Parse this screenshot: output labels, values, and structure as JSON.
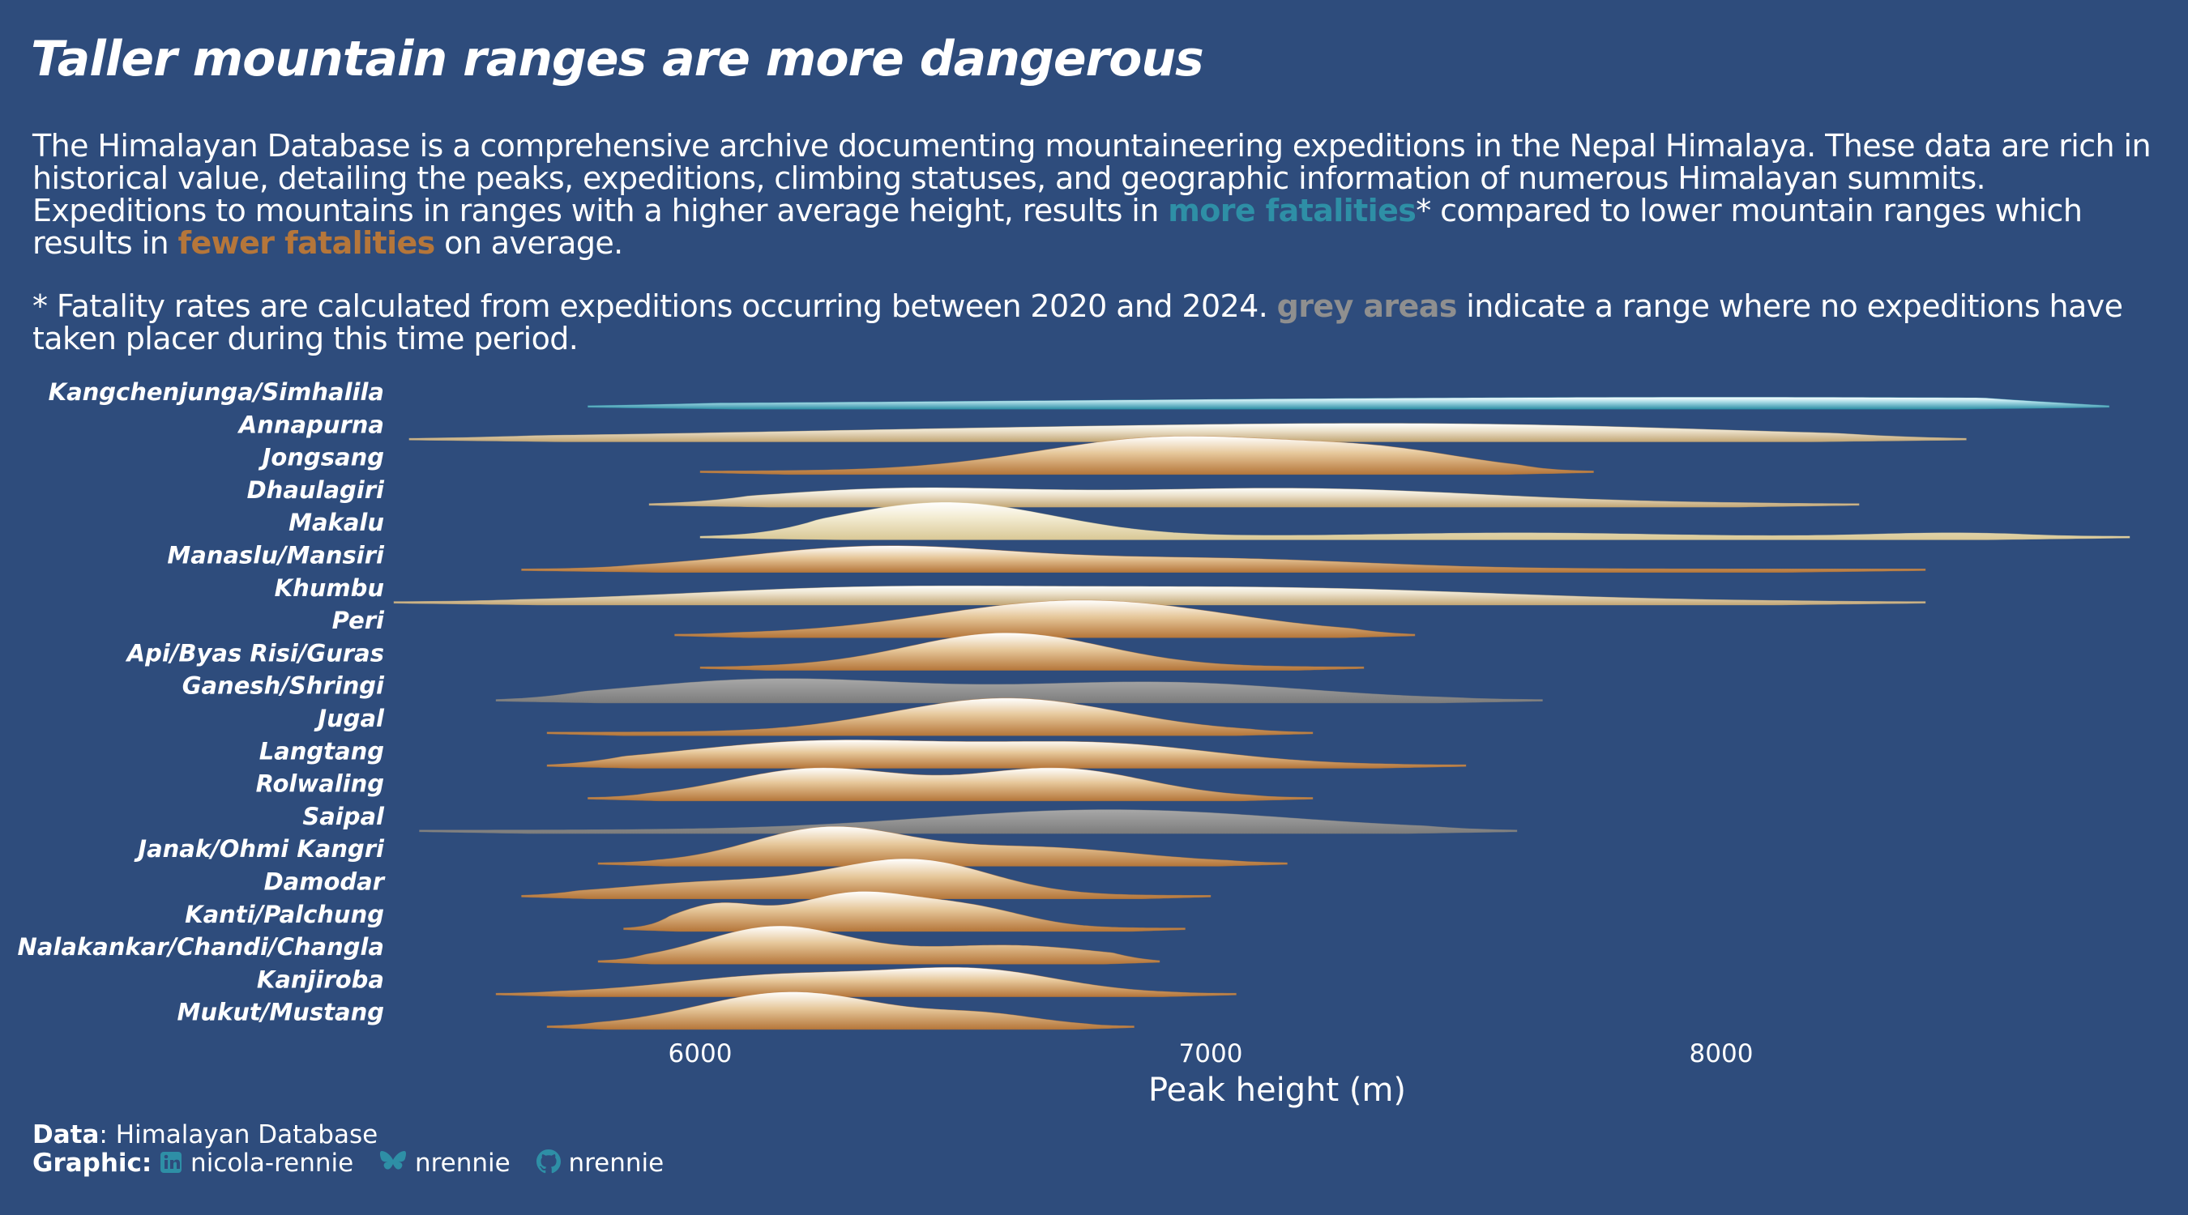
{
  "title": "Taller mountain ranges are more dangerous",
  "subtitle": {
    "p1_a": "The Himalayan Database is a comprehensive archive documenting mountaineering expeditions in the Nepal Himalaya. These data are rich in historical value, detailing the peaks, expeditions, climbing statuses, and geographic information of numerous Himalayan summits. Expeditions to mountains in ranges with a higher average height, results in ",
    "p1_more": "more fatalities",
    "p1_b": "* compared to lower mountain ranges which results in ",
    "p1_fewer": "fewer fatalities",
    "p1_c": " on average.",
    "p2_a": "* Fatality rates are calculated from expeditions occurring between 2020 and 2024. ",
    "p2_grey": "grey areas",
    "p2_b": " indicate a range where no expeditions have taken placer during this time period."
  },
  "caption": {
    "data_label": "Data",
    "data_value": ": Himalayan Database",
    "graphic_label": "Graphic",
    "linkedin": "nicola-rennie",
    "bluesky": "nrennie",
    "github": "nrennie"
  },
  "colors": {
    "background": "#2e4c7c",
    "high_fatality": "#2e8fa6",
    "low_fatality": "#b5763a",
    "no_expeditions": "#8f8f8f",
    "text": "#ffffff"
  },
  "icons": [
    "linkedin-icon",
    "bluesky-icon",
    "github-icon"
  ],
  "chart_data": {
    "type": "ridgeline",
    "xlabel": "Peak height (m)",
    "ylabel": "",
    "xlim": [
      5400,
      8800
    ],
    "xticks": [
      6000,
      7000,
      8000
    ],
    "grid": false,
    "legend": "none",
    "fill": "vertical gradient from range colour (base) to white (peak); colour = fatality rate (teal high, brown low, grey no expeditions)",
    "ridges": [
      {
        "range": "Kangchenjunga/Simhalila",
        "color": "teal",
        "min": 5780,
        "max": 8760,
        "peaks": [
          [
            8000,
            0.25,
            1300
          ]
        ]
      },
      {
        "range": "Annapurna",
        "color": "mixed",
        "min": 5430,
        "max": 8480,
        "peaks": [
          [
            6800,
            0.3,
            700
          ],
          [
            7600,
            0.25,
            500
          ]
        ]
      },
      {
        "range": "Jongsang",
        "color": "brown",
        "min": 6000,
        "max": 7750,
        "peaks": [
          [
            6930,
            1.0,
            260
          ],
          [
            7350,
            0.45,
            170
          ]
        ]
      },
      {
        "range": "Dhaulagiri",
        "color": "mixed",
        "min": 5900,
        "max": 8270,
        "peaks": [
          [
            6380,
            0.4,
            260
          ],
          [
            7150,
            0.45,
            380
          ]
        ]
      },
      {
        "range": "Makalu",
        "color": "cream",
        "min": 6000,
        "max": 8800,
        "peaks": [
          [
            6480,
            1.0,
            210
          ],
          [
            7600,
            0.1,
            250
          ],
          [
            8450,
            0.1,
            150
          ]
        ]
      },
      {
        "range": "Manaslu/Mansiri",
        "color": "brown",
        "min": 5650,
        "max": 8400,
        "peaks": [
          [
            6350,
            0.65,
            260
          ],
          [
            7000,
            0.3,
            300
          ]
        ]
      },
      {
        "range": "Khumbu",
        "color": "mixed",
        "min": 5400,
        "max": 8400,
        "peaks": [
          [
            6300,
            0.35,
            350
          ],
          [
            7100,
            0.4,
            450
          ]
        ]
      },
      {
        "range": "Peri",
        "color": "brown",
        "min": 5950,
        "max": 7400,
        "peaks": [
          [
            6750,
            1.0,
            280
          ]
        ]
      },
      {
        "range": "Api/Byas Risi/Guras",
        "color": "brown",
        "min": 6000,
        "max": 7300,
        "peaks": [
          [
            6600,
            1.0,
            190
          ]
        ]
      },
      {
        "range": "Ganesh/Shringi",
        "color": "grey",
        "min": 5600,
        "max": 7650,
        "peaks": [
          [
            6150,
            0.6,
            280
          ],
          [
            6900,
            0.5,
            280
          ]
        ]
      },
      {
        "range": "Jugal",
        "color": "brown",
        "min": 5700,
        "max": 7200,
        "peaks": [
          [
            6600,
            1.0,
            220
          ]
        ]
      },
      {
        "range": "Langtang",
        "color": "brown",
        "min": 5700,
        "max": 7500,
        "peaks": [
          [
            6250,
            0.7,
            280
          ],
          [
            6800,
            0.55,
            220
          ]
        ]
      },
      {
        "range": "Rolwaling",
        "color": "brown",
        "min": 5780,
        "max": 7200,
        "peaks": [
          [
            6230,
            0.85,
            170
          ],
          [
            6700,
            0.85,
            170
          ]
        ]
      },
      {
        "range": "Saipal",
        "color": "grey",
        "min": 5450,
        "max": 7600,
        "peaks": [
          [
            6800,
            0.6,
            350
          ]
        ]
      },
      {
        "range": "Janak/Ohmi Kangri",
        "color": "brown",
        "min": 5800,
        "max": 7150,
        "peaks": [
          [
            6250,
            1.0,
            150
          ],
          [
            6650,
            0.45,
            200
          ]
        ]
      },
      {
        "range": "Damodar",
        "color": "brown",
        "min": 5650,
        "max": 7000,
        "peaks": [
          [
            6050,
            0.4,
            200
          ],
          [
            6420,
            1.0,
            150
          ]
        ]
      },
      {
        "range": "Kanti/Palchung",
        "color": "brown",
        "min": 5850,
        "max": 6950,
        "peaks": [
          [
            6030,
            0.65,
            80
          ],
          [
            6300,
            1.0,
            120
          ],
          [
            6530,
            0.55,
            110
          ]
        ]
      },
      {
        "range": "Nalakankar/Chandi/Changla",
        "color": "brown",
        "min": 5800,
        "max": 6900,
        "peaks": [
          [
            6150,
            1.0,
            140
          ],
          [
            6600,
            0.45,
            180
          ]
        ]
      },
      {
        "range": "Kanjiroba",
        "color": "brown",
        "min": 5600,
        "max": 7050,
        "peaks": [
          [
            6180,
            0.55,
            220
          ],
          [
            6550,
            0.6,
            160
          ]
        ]
      },
      {
        "range": "Mukut/Mustang",
        "color": "brown",
        "min": 5700,
        "max": 6850,
        "peaks": [
          [
            6180,
            1.0,
            180
          ],
          [
            6560,
            0.3,
            110
          ]
        ]
      }
    ]
  }
}
